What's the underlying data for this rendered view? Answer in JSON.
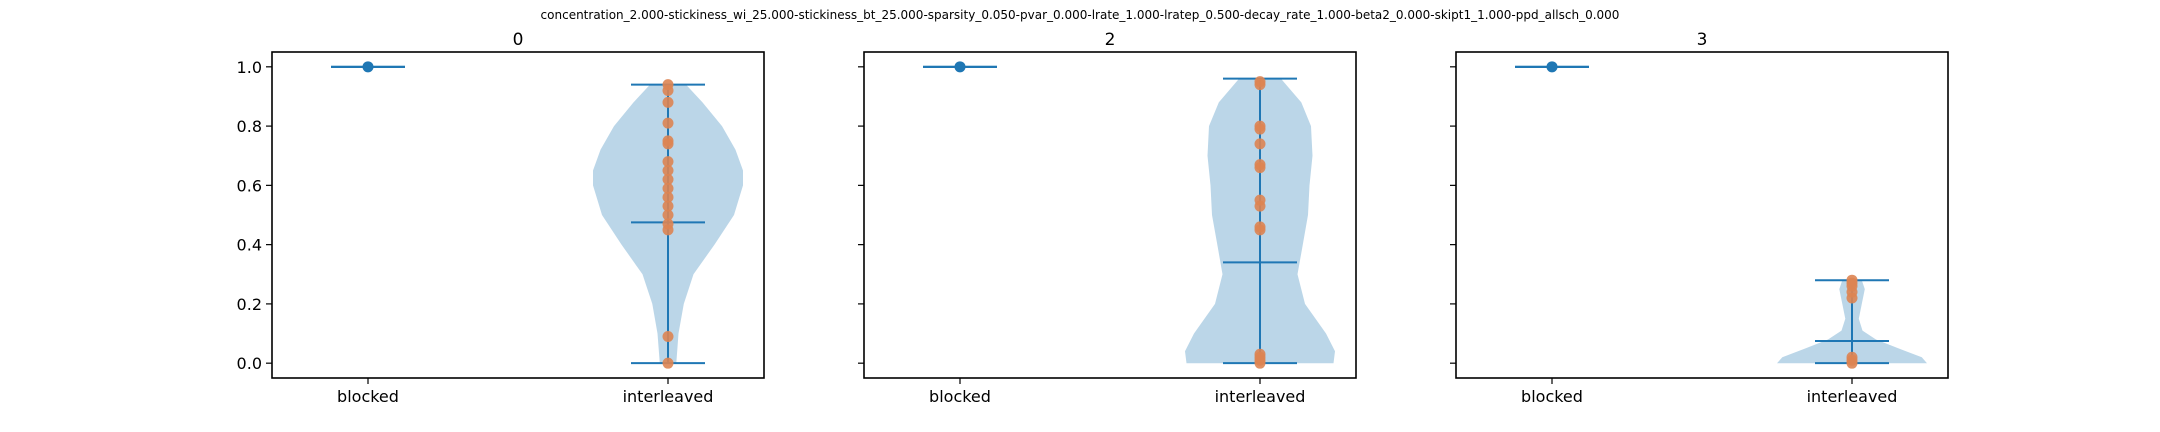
{
  "suptitle": "concentration_2.000-stickiness_wi_25.000-stickiness_bt_25.000-sparsity_0.050-pvar_0.000-lrate_1.000-lratep_0.500-decay_rate_1.000-beta2_0.000-skipt1_1.000-ppd_allsch_0.000",
  "colors": {
    "violin_fill": "#1f77b4",
    "line": "#1f77b4",
    "blocked_point": "#1f77b4",
    "interleaved_points": "#dd8452",
    "axes": "#000000"
  },
  "chart_data": [
    {
      "type": "violin",
      "title": "0",
      "categories": [
        "blocked",
        "interleaved"
      ],
      "ylim": [
        -0.05,
        1.05
      ],
      "yticks": [
        "0.0",
        "0.2",
        "0.4",
        "0.6",
        "0.8",
        "1.0"
      ],
      "show_ytick_labels": true,
      "series": [
        {
          "category": "blocked",
          "min": 1.0,
          "max": 1.0,
          "median": 1.0,
          "points": [
            1.0
          ]
        },
        {
          "category": "interleaved",
          "min": 0.0,
          "max": 0.94,
          "median": 0.475,
          "points": [
            0.0,
            0.09,
            0.45,
            0.47,
            0.5,
            0.53,
            0.56,
            0.59,
            0.62,
            0.65,
            0.68,
            0.74,
            0.75,
            0.81,
            0.88,
            0.92,
            0.94
          ],
          "density": [
            [
              0.0,
              0.11
            ],
            [
              0.1,
              0.14
            ],
            [
              0.2,
              0.21
            ],
            [
              0.3,
              0.34
            ],
            [
              0.4,
              0.62
            ],
            [
              0.5,
              0.88
            ],
            [
              0.6,
              1.0
            ],
            [
              0.65,
              1.0
            ],
            [
              0.72,
              0.9
            ],
            [
              0.8,
              0.72
            ],
            [
              0.88,
              0.46
            ],
            [
              0.94,
              0.24
            ]
          ]
        }
      ]
    },
    {
      "type": "violin",
      "title": "2",
      "categories": [
        "blocked",
        "interleaved"
      ],
      "ylim": [
        -0.05,
        1.05
      ],
      "yticks": [
        "0.0",
        "0.2",
        "0.4",
        "0.6",
        "0.8",
        "1.0"
      ],
      "show_ytick_labels": false,
      "series": [
        {
          "category": "blocked",
          "min": 1.0,
          "max": 1.0,
          "median": 1.0,
          "points": [
            1.0
          ]
        },
        {
          "category": "interleaved",
          "min": 0.0,
          "max": 0.96,
          "median": 0.34,
          "points": [
            0.0,
            0.01,
            0.02,
            0.03,
            0.45,
            0.46,
            0.53,
            0.55,
            0.66,
            0.67,
            0.74,
            0.79,
            0.8,
            0.94,
            0.95
          ],
          "density": [
            [
              0.0,
              0.98
            ],
            [
              0.04,
              1.0
            ],
            [
              0.1,
              0.88
            ],
            [
              0.2,
              0.6
            ],
            [
              0.3,
              0.5
            ],
            [
              0.4,
              0.57
            ],
            [
              0.5,
              0.64
            ],
            [
              0.6,
              0.66
            ],
            [
              0.7,
              0.7
            ],
            [
              0.8,
              0.68
            ],
            [
              0.88,
              0.55
            ],
            [
              0.96,
              0.28
            ]
          ]
        }
      ]
    },
    {
      "type": "violin",
      "title": "3",
      "categories": [
        "blocked",
        "interleaved"
      ],
      "ylim": [
        -0.05,
        1.05
      ],
      "yticks": [
        "0.0",
        "0.2",
        "0.4",
        "0.6",
        "0.8",
        "1.0"
      ],
      "show_ytick_labels": false,
      "series": [
        {
          "category": "blocked",
          "min": 1.0,
          "max": 1.0,
          "median": 1.0,
          "points": [
            1.0
          ]
        },
        {
          "category": "interleaved",
          "min": 0.0,
          "max": 0.28,
          "median": 0.075,
          "points": [
            0.0,
            0.01,
            0.02,
            0.22,
            0.24,
            0.26,
            0.27,
            0.28
          ],
          "density": [
            [
              0.0,
              1.0
            ],
            [
              0.02,
              0.93
            ],
            [
              0.05,
              0.62
            ],
            [
              0.08,
              0.32
            ],
            [
              0.11,
              0.14
            ],
            [
              0.15,
              0.09
            ],
            [
              0.2,
              0.13
            ],
            [
              0.25,
              0.17
            ],
            [
              0.28,
              0.13
            ]
          ]
        }
      ]
    }
  ]
}
